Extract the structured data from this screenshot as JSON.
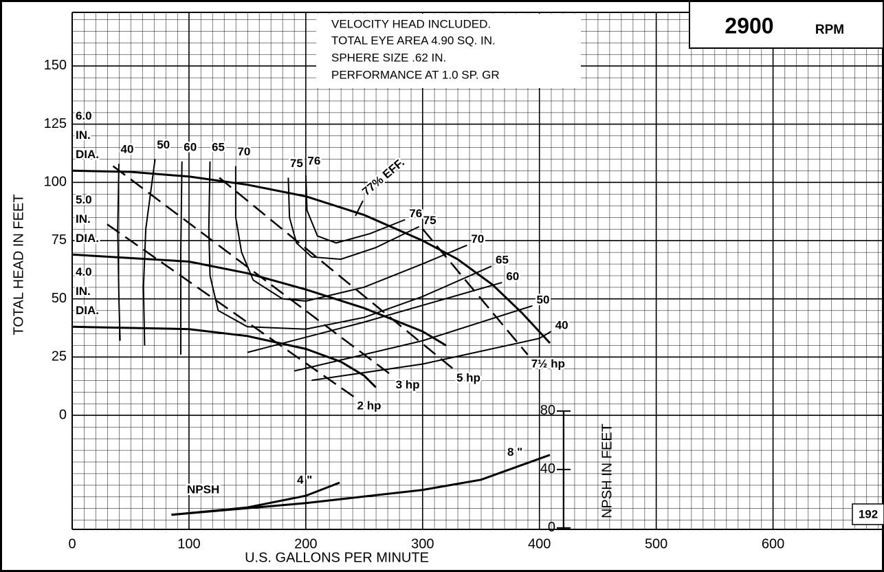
{
  "chart_data": {
    "type": "line",
    "xlabel": "U.S. GALLONS PER MINUTE",
    "ylabel": "TOTAL HEAD IN FEET",
    "y2label": "NPSH IN FEET",
    "notes": [
      "VELOCITY HEAD INCLUDED.",
      "TOTAL EYE AREA 4.90 SQ. IN.",
      "SPHERE SIZE .62 IN.",
      "PERFORMANCE AT 1.0 SP. GR"
    ],
    "speed": "2900",
    "speed_unit": "RPM",
    "page_number": "192",
    "npsh_label": "NPSH",
    "annotation": "77% EFF.",
    "xlim": [
      0,
      695
    ],
    "ylim": [
      -49,
      173
    ],
    "y2lim": [
      -1,
      353
    ],
    "xticks": [
      0,
      100,
      200,
      300,
      400,
      500,
      600
    ],
    "yticks": [
      0,
      25,
      50,
      75,
      100,
      125,
      150
    ],
    "y2ticks": [
      0,
      40,
      80
    ],
    "grid": true,
    "color": "#000000",
    "series": [
      {
        "name": [
          "6.0",
          "IN.",
          "DIA."
        ],
        "x": [
          0,
          50,
          100,
          150,
          200,
          250,
          300,
          330,
          360,
          385,
          409
        ],
        "values": [
          105,
          104.5,
          102.5,
          99,
          94,
          86,
          75,
          67,
          56,
          44,
          31
        ]
      },
      {
        "name": [
          "5.0",
          "IN.",
          "DIA."
        ],
        "x": [
          0,
          100,
          150,
          200,
          250,
          300,
          320
        ],
        "values": [
          69,
          66,
          61,
          54,
          46,
          36,
          30
        ]
      },
      {
        "name": [
          "4.0",
          "IN.",
          "DIA."
        ],
        "x": [
          0,
          100,
          150,
          200,
          230,
          250,
          260
        ],
        "values": [
          38,
          37,
          34,
          28.5,
          23,
          17,
          12
        ]
      }
    ],
    "efficiency": [
      {
        "name": "40",
        "x": [
          40,
          39,
          40,
          41,
          null,
          205,
          300,
          400,
          410
        ],
        "values": [
          108,
          80,
          50,
          32,
          null,
          15,
          22,
          33,
          36
        ]
      },
      {
        "name": "50",
        "x": [
          71,
          63,
          61,
          62,
          null,
          190,
          300,
          394
        ],
        "values": [
          110,
          80,
          55,
          30,
          null,
          19,
          32,
          47
        ]
      },
      {
        "name": "60",
        "x": [
          94,
          93,
          93,
          null,
          150,
          250,
          368
        ],
        "values": [
          109,
          70,
          26,
          null,
          27,
          40,
          57
        ]
      },
      {
        "name": "65",
        "x": [
          118,
          117,
          118,
          125,
          150,
          200,
          250,
          300,
          359
        ],
        "values": [
          109,
          80,
          60,
          45,
          38,
          37,
          42,
          51,
          64
        ]
      },
      {
        "name": "70",
        "x": [
          140,
          140,
          145,
          155,
          180,
          200,
          250,
          300,
          338
        ],
        "values": [
          107,
          85,
          70,
          58,
          50,
          49,
          55,
          65,
          73
        ]
      },
      {
        "name": "75",
        "x": [
          185,
          186,
          192,
          205,
          230,
          260,
          297
        ],
        "values": [
          102,
          85,
          74,
          68,
          67,
          72,
          81
        ]
      },
      {
        "name": "76",
        "x": [
          200,
          201,
          210,
          226,
          255,
          285
        ],
        "values": [
          103,
          88,
          77,
          74,
          78,
          84
        ]
      }
    ],
    "power": {
      "line_style": "dashed",
      "series": [
        {
          "name": "2 hp",
          "x": [
            30,
            241
          ],
          "values": [
            82,
            8
          ]
        },
        {
          "name": "3 hp",
          "x": [
            35,
            274
          ],
          "values": [
            107,
            17
          ]
        },
        {
          "name": "5 hp",
          "x": [
            126,
            326
          ],
          "values": [
            102,
            20
          ]
        },
        {
          "name": "7½ hp",
          "x": [
            300,
            390
          ],
          "values": [
            80,
            26
          ]
        }
      ]
    },
    "npsh": [
      {
        "name": "4 \"",
        "axis": "y2",
        "x": [
          85,
          150,
          200,
          229
        ],
        "values": [
          9,
          14,
          22,
          31
        ]
      },
      {
        "name": "8 \"",
        "axis": "y2",
        "x": [
          85,
          200,
          300,
          350,
          409
        ],
        "values": [
          9,
          17,
          26,
          33,
          50
        ]
      }
    ]
  }
}
